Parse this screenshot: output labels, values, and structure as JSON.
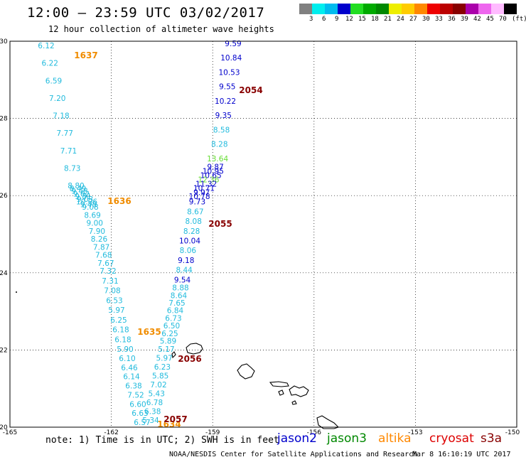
{
  "header": {
    "title": "12:00 – 23:59 UTC 03/02/2017",
    "subtitle": "12 hour collection of altimeter wave heights"
  },
  "colorbar": {
    "swatches": [
      "#808080",
      "#00eeee",
      "#00bbee",
      "#0000cc",
      "#22dd22",
      "#00aa00",
      "#008800",
      "#eeee00",
      "#ffcc00",
      "#ff8800",
      "#ee0000",
      "#bb0000",
      "#880000",
      "#aa00aa",
      "#ee66ee",
      "#ffbbff",
      "#000000"
    ],
    "labels": [
      "3",
      "6",
      "9",
      "12",
      "15",
      "18",
      "21",
      "24",
      "27",
      "30",
      "33",
      "36",
      "39",
      "42",
      "45",
      "70",
      "(ft)"
    ]
  },
  "map": {
    "lon_ticks": [
      "-165",
      "-162",
      "-159",
      "-156",
      "-153",
      "-150"
    ],
    "lat_ticks": [
      "30",
      "28",
      "26",
      "24",
      "22",
      "20"
    ],
    "colors": {
      "jason2": "#0000cc",
      "jason3": "#008800",
      "altika": "#ff8800",
      "cryosat": "#aa0000",
      "ft3to6": "#22bbdd",
      "ft9to12": "#0000cc",
      "ft12to15": "#66dd33",
      "time_altika": "#f08c00",
      "time_cryosat": "#880000"
    },
    "track_west": {
      "color_key": "ft3to6",
      "values": [
        "6.12",
        "6.22",
        "6.59",
        "7.20",
        "7.18",
        "7.77",
        "7.71",
        "8.73",
        "8.80",
        "8.49",
        "9.48",
        "9.62",
        "9.81",
        "9.03",
        "10.06",
        "9.48",
        "9.08",
        "8.69",
        "9.00",
        "7.90",
        "8.26",
        "7.87",
        "7.68",
        "7.67",
        "7.32",
        "7.31",
        "7.08",
        "6.53",
        "5.97",
        "6.25",
        "6.18",
        "6.18",
        "5.90",
        "6.10",
        "6.46",
        "6.14",
        "6.38",
        "7.52",
        "6.60",
        "6.63",
        "6.57"
      ]
    },
    "track_east": {
      "values": [
        {
          "v": "9.59",
          "c": "ft9to12"
        },
        {
          "v": "10.84",
          "c": "ft9to12"
        },
        {
          "v": "10.53",
          "c": "ft9to12"
        },
        {
          "v": "9.55",
          "c": "ft9to12"
        },
        {
          "v": "10.22",
          "c": "ft9to12"
        },
        {
          "v": "9.35",
          "c": "ft9to12"
        },
        {
          "v": "8.58",
          "c": "ft3to6"
        },
        {
          "v": "8.28",
          "c": "ft3to6"
        },
        {
          "v": "13.64",
          "c": "ft12to15"
        },
        {
          "v": "9.87",
          "c": "ft9to12"
        },
        {
          "v": "10.95",
          "c": "ft9to12"
        },
        {
          "v": "10.65",
          "c": "ft9to12"
        },
        {
          "v": "12.36",
          "c": "ft12to15"
        },
        {
          "v": "11.32",
          "c": "ft9to12"
        },
        {
          "v": "10.71",
          "c": "ft9to12"
        },
        {
          "v": "9.97",
          "c": "ft9to12"
        },
        {
          "v": "10.78",
          "c": "ft9to12"
        },
        {
          "v": "9.73",
          "c": "ft9to12"
        },
        {
          "v": "8.67",
          "c": "ft3to6"
        },
        {
          "v": "8.08",
          "c": "ft3to6"
        },
        {
          "v": "8.28",
          "c": "ft3to6"
        },
        {
          "v": "10.04",
          "c": "ft9to12"
        },
        {
          "v": "8.06",
          "c": "ft3to6"
        },
        {
          "v": "9.18",
          "c": "ft9to12"
        },
        {
          "v": "8.44",
          "c": "ft3to6"
        },
        {
          "v": "9.54",
          "c": "ft9to12"
        },
        {
          "v": "8.88",
          "c": "ft3to6"
        },
        {
          "v": "8.64",
          "c": "ft3to6"
        },
        {
          "v": "7.65",
          "c": "ft3to6"
        },
        {
          "v": "6.84",
          "c": "ft3to6"
        },
        {
          "v": "6.73",
          "c": "ft3to6"
        },
        {
          "v": "6.50",
          "c": "ft3to6"
        },
        {
          "v": "6.25",
          "c": "ft3to6"
        },
        {
          "v": "5.89",
          "c": "ft3to6"
        },
        {
          "v": "5.17",
          "c": "ft3to6"
        },
        {
          "v": "5.97",
          "c": "ft3to6"
        },
        {
          "v": "6.23",
          "c": "ft3to6"
        },
        {
          "v": "5.85",
          "c": "ft3to6"
        },
        {
          "v": "7.02",
          "c": "ft3to6"
        },
        {
          "v": "5.43",
          "c": "ft3to6"
        },
        {
          "v": "6.78",
          "c": "ft3to6"
        },
        {
          "v": "6.38",
          "c": "ft3to6"
        },
        {
          "v": "5.34",
          "c": "ft3to6"
        }
      ]
    },
    "time_labels": [
      {
        "t": "1637",
        "c": "time_altika"
      },
      {
        "t": "1636",
        "c": "time_altika"
      },
      {
        "t": "1635",
        "c": "time_altika"
      },
      {
        "t": "1634",
        "c": "time_altika"
      },
      {
        "t": "2054",
        "c": "time_cryosat"
      },
      {
        "t": "2055",
        "c": "time_cryosat"
      },
      {
        "t": "2056",
        "c": "time_cryosat"
      },
      {
        "t": "2057",
        "c": "time_cryosat"
      }
    ]
  },
  "footer": {
    "note": "note: 1) Time is in UTC; 2) SWH is in feet",
    "credit": "NOAA/NESDIS Center for Satellite Applications and Research",
    "timestamp": "Mar  8 16:10:19 UTC 2017",
    "legend": [
      {
        "label": "jason2",
        "color": "#0000cc"
      },
      {
        "label": "jason3",
        "color": "#008800"
      },
      {
        "label": "altika",
        "color": "#ff8800"
      },
      {
        "label": "cryosat",
        "color": "#dd0000"
      },
      {
        "label": "s3a",
        "color": "#880000"
      }
    ]
  }
}
